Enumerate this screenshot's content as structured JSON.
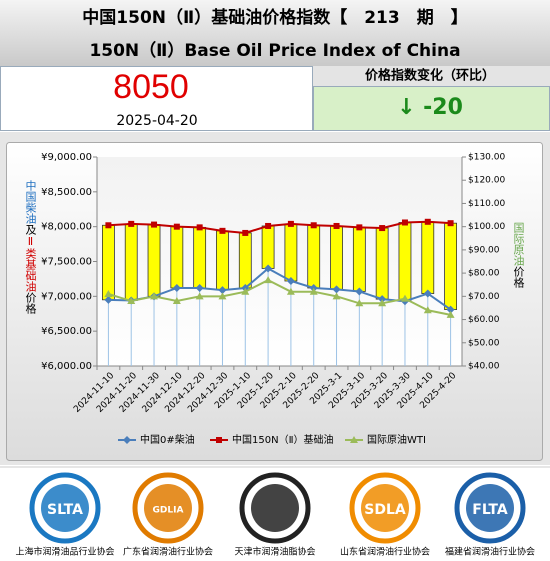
{
  "header": {
    "title": "中国150N（Ⅱ）基础油价格指数【　213　期　】",
    "subtitle": "150N（Ⅱ）Base Oil Price Index of China"
  },
  "summary": {
    "index": "8050",
    "date": "2025-04-20",
    "change_label": "价格指数变化（环比）",
    "change": "↓ -20"
  },
  "chart_data": {
    "type": "line",
    "left_axis_label": [
      {
        "text": "中国柴油",
        "color": "#1f6fc0"
      },
      {
        "text": "及",
        "color": "#000000"
      },
      {
        "text": "Ⅱ类基础油",
        "color": "#d00000"
      },
      {
        "text": "价格",
        "color": "#000000"
      }
    ],
    "right_axis_label": [
      {
        "text": "国际原油",
        "color": "#6aa84f"
      },
      {
        "text": "价格",
        "color": "#000000"
      }
    ],
    "categories": [
      "2024-11-10",
      "2024-11-20",
      "2024-11-30",
      "2024-12-10",
      "2024-12-20",
      "2024-12-30",
      "2025-1-10",
      "2025-1-20",
      "2025-2-10",
      "2025-2-20",
      "2025-3-1",
      "2025-3-10",
      "2025-3-20",
      "2025-3-30",
      "2025-4-10",
      "2025-4-20"
    ],
    "series": [
      {
        "name": "中国0#柴油",
        "color": "#4a7ebb",
        "marker": "diamond",
        "values": [
          6950,
          6940,
          7000,
          7120,
          7120,
          7090,
          7120,
          7400,
          7220,
          7120,
          7100,
          7070,
          6960,
          6930,
          7040,
          6810
        ]
      },
      {
        "name": "中国150N（Ⅱ）基础油",
        "color": "#c00000",
        "marker": "square",
        "values": [
          8020,
          8040,
          8030,
          8000,
          7990,
          7940,
          7910,
          8010,
          8040,
          8020,
          8010,
          7990,
          7980,
          8060,
          8070,
          8050
        ]
      },
      {
        "name": "国际原油WTI",
        "color": "#9bbb59",
        "marker": "triangle",
        "axis": "y2",
        "values": [
          71,
          68,
          70,
          68,
          70,
          70,
          72,
          77,
          72,
          72,
          70,
          67,
          67,
          69,
          64,
          62
        ]
      }
    ],
    "updown_bars_color": "#ffff00",
    "ylim": [
      6000,
      9000
    ],
    "yticks": [
      {
        "value": 6000,
        "label": "¥6,000.00"
      },
      {
        "value": 6500,
        "label": "¥6,500.00"
      },
      {
        "value": 7000,
        "label": "¥7,000.00"
      },
      {
        "value": 7500,
        "label": "¥7,500.00"
      },
      {
        "value": 8000,
        "label": "¥8,000.00"
      },
      {
        "value": 8500,
        "label": "¥8,500.00"
      },
      {
        "value": 9000,
        "label": "¥9,000.00"
      }
    ],
    "y2lim": [
      40,
      130
    ],
    "y2ticks": [
      {
        "value": 40,
        "label": "$40.00"
      },
      {
        "value": 50,
        "label": "$50.00"
      },
      {
        "value": 60,
        "label": "$60.00"
      },
      {
        "value": 70,
        "label": "$70.00"
      },
      {
        "value": 80,
        "label": "$80.00"
      },
      {
        "value": 90,
        "label": "$90.00"
      },
      {
        "value": 100,
        "label": "$100.00"
      },
      {
        "value": 110,
        "label": "$110.00"
      },
      {
        "value": 120,
        "label": "$120.00"
      },
      {
        "value": 130,
        "label": "$130.00"
      }
    ]
  },
  "footer": {
    "logos": [
      {
        "abbr": "SLTA",
        "name": "上海市润滑油品行业协会",
        "color": "#1a78c2"
      },
      {
        "abbr": "GDLIA",
        "name": "广东省润滑油行业协会",
        "color": "#e07b00"
      },
      {
        "name": "天津市润滑油脂协会",
        "color": "#222222"
      },
      {
        "abbr": "SDLA",
        "name": "山东省润滑油行业协会",
        "color": "#f08c00"
      },
      {
        "abbr": "FLTA",
        "name": "福建省润滑油行业协会",
        "color": "#1b5fa8"
      }
    ]
  }
}
